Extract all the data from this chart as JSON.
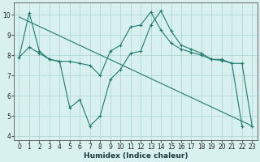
{
  "xlabel": "Humidex (Indice chaleur)",
  "background_color": "#d8f0ee",
  "grid_color": "#b0d8d4",
  "line_color": "#1e7a6e",
  "xlim": [
    -0.5,
    23.5
  ],
  "ylim": [
    3.8,
    10.6
  ],
  "yticks": [
    4,
    5,
    6,
    7,
    8,
    9,
    10
  ],
  "xticks": [
    0,
    1,
    2,
    3,
    4,
    5,
    6,
    7,
    8,
    9,
    10,
    11,
    12,
    13,
    14,
    15,
    16,
    17,
    18,
    19,
    20,
    21,
    22,
    23
  ],
  "series": [
    {
      "x": [
        0,
        1,
        2,
        3,
        4,
        5,
        6,
        7,
        8,
        9,
        10,
        11,
        12,
        13,
        14,
        15,
        16,
        17,
        18,
        19,
        20,
        21,
        22,
        23
      ],
      "y": [
        7.9,
        8.4,
        8.1,
        7.8,
        7.7,
        5.4,
        5.8,
        4.5,
        5.0,
        6.8,
        7.3,
        8.1,
        8.2,
        9.5,
        10.2,
        9.2,
        8.5,
        8.3,
        8.1,
        7.8,
        7.8,
        7.6,
        7.6,
        4.5
      ],
      "has_markers": true
    },
    {
      "x": [
        0,
        1,
        2,
        3,
        4,
        5,
        6,
        7,
        8,
        9,
        10,
        11,
        12,
        13,
        14,
        15,
        16,
        17,
        18,
        19,
        20,
        21,
        22,
        23
      ],
      "y": [
        7.9,
        10.1,
        8.2,
        7.8,
        7.7,
        7.7,
        7.6,
        7.5,
        7.0,
        8.2,
        8.5,
        9.4,
        9.5,
        10.15,
        9.25,
        8.6,
        8.3,
        8.15,
        8.0,
        7.8,
        7.75,
        7.6,
        4.5,
        null
      ],
      "has_markers": true
    },
    {
      "x": [
        0,
        23
      ],
      "y": [
        9.9,
        4.5
      ],
      "has_markers": false
    }
  ]
}
